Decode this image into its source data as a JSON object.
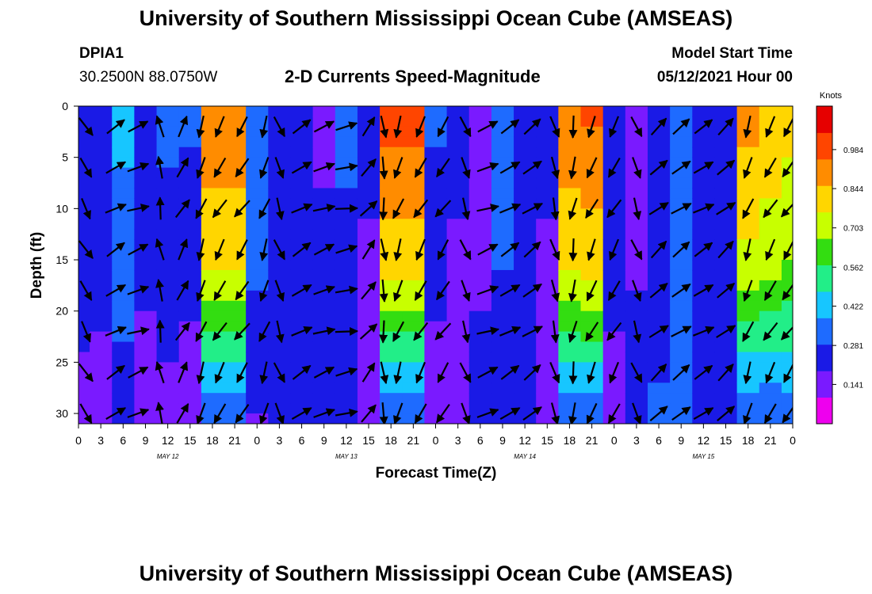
{
  "header": {
    "title": "University of Southern Mississippi Ocean Cube (AMSEAS)",
    "station_id": "DPIA1",
    "coordinates": "30.2500N  88.0750W",
    "plot_title": "2-D Currents Speed-Magnitude",
    "model_start_label": "Model Start Time",
    "model_start_value": "05/12/2021 Hour 00"
  },
  "footer": {
    "title": "University of Southern Mississippi Ocean Cube (AMSEAS)"
  },
  "chart_data": {
    "type": "heatmap",
    "title": "2-D Currents Speed-Magnitude",
    "xlabel": "Forecast Time(Z)",
    "ylabel": "Depth (ft)",
    "x_range_hours": [
      0,
      96
    ],
    "y_range_ft": [
      0,
      31
    ],
    "x_ticks": [
      {
        "hour": 0,
        "label": "0"
      },
      {
        "hour": 3,
        "label": "3"
      },
      {
        "hour": 6,
        "label": "6"
      },
      {
        "hour": 9,
        "label": "9"
      },
      {
        "hour": 12,
        "label": "12"
      },
      {
        "hour": 15,
        "label": "15"
      },
      {
        "hour": 18,
        "label": "18"
      },
      {
        "hour": 21,
        "label": "21"
      },
      {
        "hour": 24,
        "label": "0"
      },
      {
        "hour": 27,
        "label": "3"
      },
      {
        "hour": 30,
        "label": "6"
      },
      {
        "hour": 33,
        "label": "9"
      },
      {
        "hour": 36,
        "label": "12"
      },
      {
        "hour": 39,
        "label": "15"
      },
      {
        "hour": 42,
        "label": "18"
      },
      {
        "hour": 45,
        "label": "21"
      },
      {
        "hour": 48,
        "label": "0"
      },
      {
        "hour": 51,
        "label": "3"
      },
      {
        "hour": 54,
        "label": "6"
      },
      {
        "hour": 57,
        "label": "9"
      },
      {
        "hour": 60,
        "label": "12"
      },
      {
        "hour": 63,
        "label": "15"
      },
      {
        "hour": 66,
        "label": "18"
      },
      {
        "hour": 69,
        "label": "21"
      },
      {
        "hour": 72,
        "label": "0"
      },
      {
        "hour": 75,
        "label": "3"
      },
      {
        "hour": 78,
        "label": "6"
      },
      {
        "hour": 81,
        "label": "9"
      },
      {
        "hour": 84,
        "label": "12"
      },
      {
        "hour": 87,
        "label": "15"
      },
      {
        "hour": 90,
        "label": "18"
      },
      {
        "hour": 93,
        "label": "21"
      },
      {
        "hour": 96,
        "label": "0"
      }
    ],
    "date_labels": [
      {
        "hour": 12,
        "label": "MAY 12"
      },
      {
        "hour": 36,
        "label": "MAY 13"
      },
      {
        "hour": 60,
        "label": "MAY 14"
      },
      {
        "hour": 84,
        "label": "MAY 15"
      }
    ],
    "y_ticks": [
      0,
      5,
      10,
      15,
      20,
      25,
      30
    ],
    "colorbar": {
      "unit": "Knots",
      "range": [
        0,
        1.14
      ],
      "ticks": [
        0.141,
        0.281,
        0.422,
        0.562,
        0.703,
        0.844,
        0.984
      ],
      "colors": [
        "#ee00ee",
        "#7a1aff",
        "#1a1ae6",
        "#1e6bff",
        "#17c6ff",
        "#22ee88",
        "#33dd11",
        "#c8ff00",
        "#ffd600",
        "#ff8c00",
        "#ff4500",
        "#e60000"
      ]
    },
    "speed_field_by_column": [
      {
        "hour": 0,
        "surface": 0.28,
        "bottom": 0.15
      },
      {
        "hour": 3,
        "surface": 0.25,
        "bottom": 0.15
      },
      {
        "hour": 6,
        "surface": 0.4,
        "bottom": 0.22
      },
      {
        "hour": 9,
        "surface": 0.28,
        "bottom": 0.1
      },
      {
        "hour": 12,
        "surface": 0.3,
        "bottom": 0.15
      },
      {
        "hour": 15,
        "surface": 0.3,
        "bottom": 0.1
      },
      {
        "hour": 18,
        "surface": 0.95,
        "bottom": 0.3
      },
      {
        "hour": 21,
        "surface": 0.95,
        "bottom": 0.3
      },
      {
        "hour": 24,
        "surface": 0.35,
        "bottom": 0.18
      },
      {
        "hour": 27,
        "surface": 0.25,
        "bottom": 0.2
      },
      {
        "hour": 30,
        "surface": 0.25,
        "bottom": 0.25
      },
      {
        "hour": 33,
        "surface": 0.18,
        "bottom": 0.25
      },
      {
        "hour": 36,
        "surface": 0.3,
        "bottom": 0.2
      },
      {
        "hour": 39,
        "surface": 0.2,
        "bottom": 0.15
      },
      {
        "hour": 42,
        "surface": 1.0,
        "bottom": 0.28
      },
      {
        "hour": 45,
        "surface": 1.0,
        "bottom": 0.28
      },
      {
        "hour": 48,
        "surface": 0.3,
        "bottom": 0.1
      },
      {
        "hour": 51,
        "surface": 0.2,
        "bottom": 0.15
      },
      {
        "hour": 54,
        "surface": 0.18,
        "bottom": 0.2
      },
      {
        "hour": 57,
        "surface": 0.3,
        "bottom": 0.25
      },
      {
        "hour": 60,
        "surface": 0.28,
        "bottom": 0.25
      },
      {
        "hour": 63,
        "surface": 0.2,
        "bottom": 0.15
      },
      {
        "hour": 66,
        "surface": 0.95,
        "bottom": 0.3
      },
      {
        "hour": 69,
        "surface": 0.98,
        "bottom": 0.3
      },
      {
        "hour": 72,
        "surface": 0.25,
        "bottom": 0.15
      },
      {
        "hour": 75,
        "surface": 0.15,
        "bottom": 0.25
      },
      {
        "hour": 78,
        "surface": 0.22,
        "bottom": 0.3
      },
      {
        "hour": 81,
        "surface": 0.3,
        "bottom": 0.3
      },
      {
        "hour": 84,
        "surface": 0.28,
        "bottom": 0.25
      },
      {
        "hour": 87,
        "surface": 0.2,
        "bottom": 0.25
      },
      {
        "hour": 90,
        "surface": 0.9,
        "bottom": 0.28
      },
      {
        "hour": 93,
        "surface": 0.85,
        "bottom": 0.28
      },
      {
        "hour": 96,
        "surface": 0.8,
        "bottom": 0.3
      }
    ],
    "vector_depths_ft": [
      2,
      6,
      10,
      14,
      18,
      22,
      26,
      30
    ],
    "current_directions_deg_by_hour": [
      {
        "hour": 1,
        "deg": 150
      },
      {
        "hour": 5,
        "deg": 60
      },
      {
        "hour": 8,
        "deg": 70
      },
      {
        "hour": 11,
        "deg": 350
      },
      {
        "hour": 14,
        "deg": 30
      },
      {
        "hour": 16.5,
        "deg": 200
      },
      {
        "hour": 19,
        "deg": 210
      },
      {
        "hour": 22,
        "deg": 215
      },
      {
        "hour": 25,
        "deg": 200
      },
      {
        "hour": 27,
        "deg": 160
      },
      {
        "hour": 30,
        "deg": 60
      },
      {
        "hour": 33,
        "deg": 70
      },
      {
        "hour": 36,
        "deg": 80
      },
      {
        "hour": 39,
        "deg": 40
      },
      {
        "hour": 41,
        "deg": 175
      },
      {
        "hour": 43,
        "deg": 200
      },
      {
        "hour": 46,
        "deg": 210
      },
      {
        "hour": 49,
        "deg": 215
      },
      {
        "hour": 52,
        "deg": 160
      },
      {
        "hour": 55,
        "deg": 70
      },
      {
        "hour": 58,
        "deg": 60
      },
      {
        "hour": 61,
        "deg": 55
      },
      {
        "hour": 64,
        "deg": 165
      },
      {
        "hour": 66.5,
        "deg": 190
      },
      {
        "hour": 69,
        "deg": 205
      },
      {
        "hour": 72,
        "deg": 210
      },
      {
        "hour": 75,
        "deg": 160
      },
      {
        "hour": 78,
        "deg": 50
      },
      {
        "hour": 81,
        "deg": 55
      },
      {
        "hour": 84,
        "deg": 60
      },
      {
        "hour": 87,
        "deg": 50
      },
      {
        "hour": 90,
        "deg": 200
      },
      {
        "hour": 93,
        "deg": 210
      },
      {
        "hour": 95.5,
        "deg": 215
      }
    ]
  }
}
